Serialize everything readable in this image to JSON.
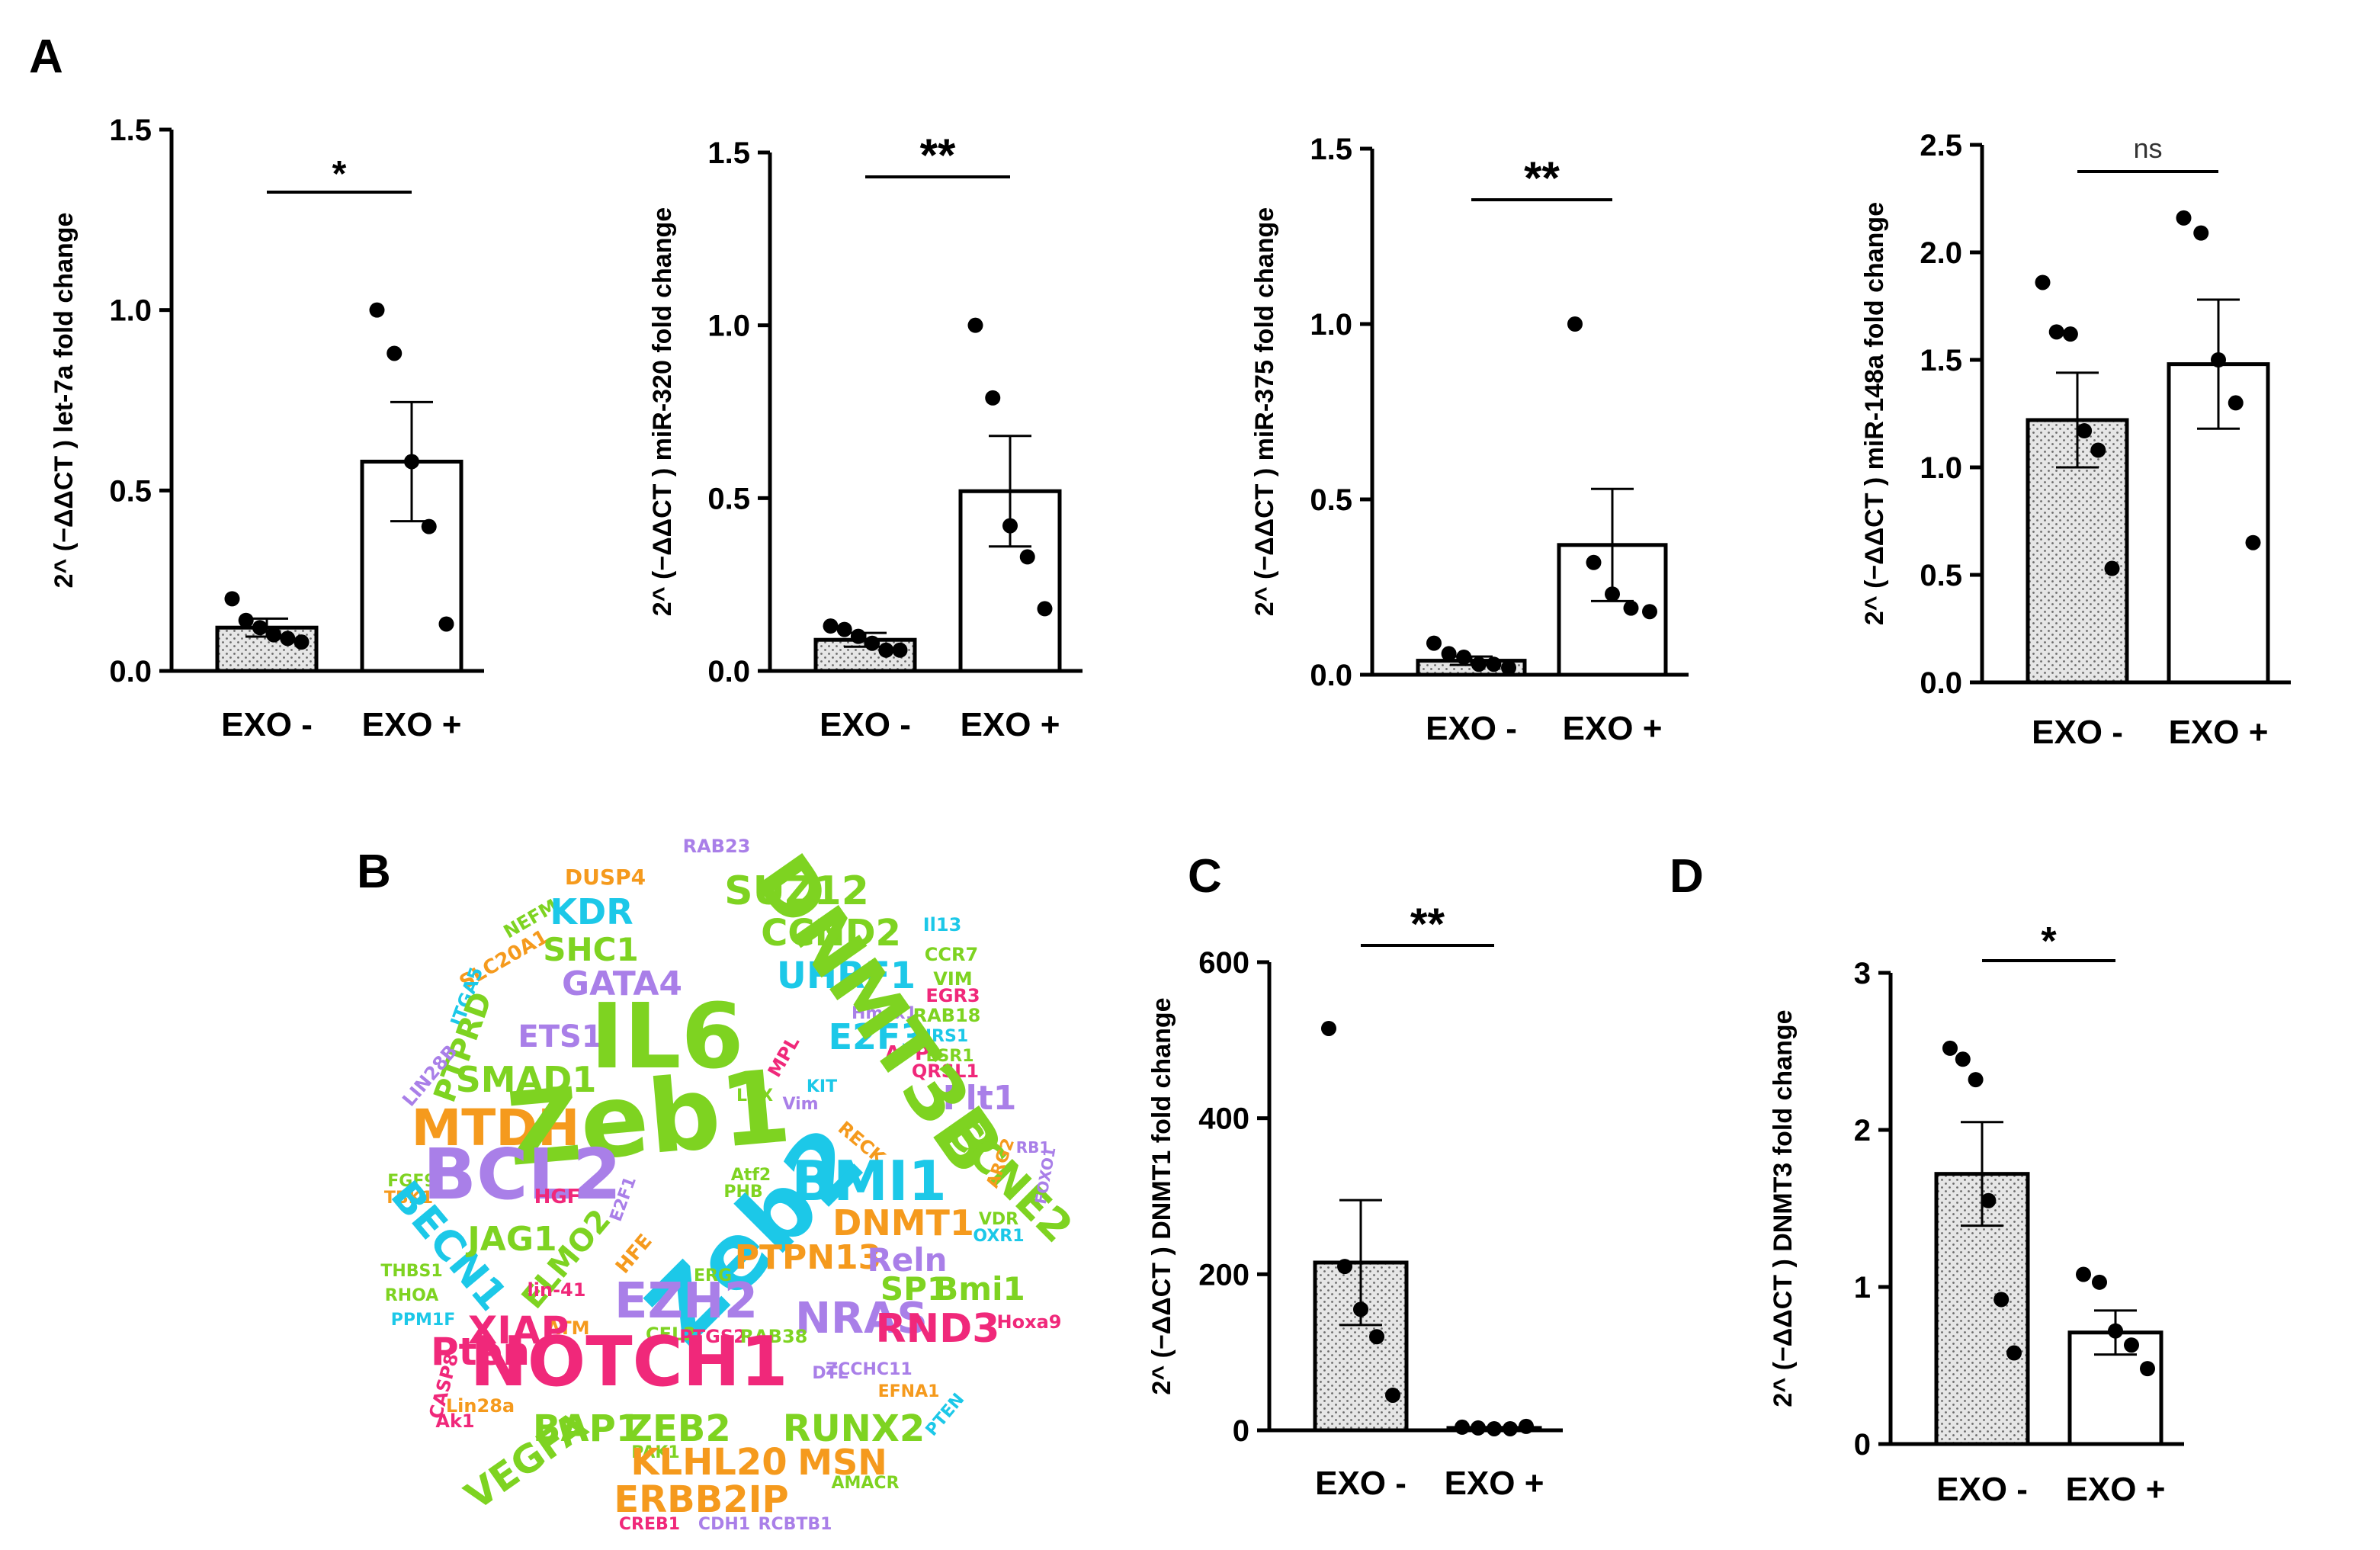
{
  "panel_labels": {
    "a": "A",
    "b": "B",
    "c": "C",
    "d": "D"
  },
  "colors": {
    "bar_stroke": "#000000",
    "bar_fill_stipple": "#d9d9d9",
    "bar_fill_plain": "#ffffff",
    "point": "#000000"
  },
  "chart_data": [
    {
      "id": "let7a",
      "type": "bar",
      "title": "",
      "ylabel": "2^ (−ΔΔCT ) let-7a  fold change",
      "categories": [
        "EXO -",
        "EXO +"
      ],
      "values": [
        0.12,
        0.58
      ],
      "errors": [
        0.025,
        0.165
      ],
      "points": [
        [
          0.2,
          0.14,
          0.12,
          0.1,
          0.09,
          0.08
        ],
        [
          1.0,
          0.88,
          0.58,
          0.4,
          0.13
        ]
      ],
      "ylim": [
        0,
        1.5
      ],
      "yticks": [
        "0.0",
        "0.5",
        "1.0",
        "1.5"
      ],
      "significance": "*"
    },
    {
      "id": "mir320",
      "type": "bar",
      "title": "",
      "ylabel": "2^ (−ΔΔCT ) miR-320 fold change",
      "categories": [
        "EXO -",
        "EXO +"
      ],
      "values": [
        0.09,
        0.52
      ],
      "errors": [
        0.02,
        0.16
      ],
      "points": [
        [
          0.13,
          0.12,
          0.1,
          0.08,
          0.06,
          0.06
        ],
        [
          1.0,
          0.79,
          0.42,
          0.33,
          0.18
        ]
      ],
      "ylim": [
        0,
        1.5
      ],
      "yticks": [
        "0.0",
        "0.5",
        "1.0",
        "1.5"
      ],
      "significance": "**"
    },
    {
      "id": "mir375",
      "type": "bar",
      "title": "",
      "ylabel": "2^ (−ΔΔCT ) miR-375 fold change",
      "categories": [
        "EXO -",
        "EXO +"
      ],
      "values": [
        0.04,
        0.37
      ],
      "errors": [
        0.012,
        0.16
      ],
      "points": [
        [
          0.09,
          0.06,
          0.05,
          0.03,
          0.03,
          0.02
        ],
        [
          1.0,
          0.32,
          0.23,
          0.19,
          0.18
        ]
      ],
      "ylim": [
        0,
        1.5
      ],
      "yticks": [
        "0.0",
        "0.5",
        "1.0",
        "1.5"
      ],
      "significance": "**"
    },
    {
      "id": "mir148a",
      "type": "bar",
      "title": "",
      "ylabel": "2^ (−ΔΔCT ) miR-148a fold change",
      "categories": [
        "EXO -",
        "EXO +"
      ],
      "values": [
        1.22,
        1.48
      ],
      "errors": [
        0.22,
        0.3
      ],
      "points": [
        [
          1.86,
          1.63,
          1.62,
          1.17,
          1.08,
          0.53
        ],
        [
          2.16,
          2.09,
          1.5,
          1.3,
          0.65
        ]
      ],
      "ylim": [
        0,
        2.5
      ],
      "yticks": [
        "0.0",
        "0.5",
        "1.0",
        "1.5",
        "2.0",
        "2.5"
      ],
      "significance": "ns"
    },
    {
      "id": "dnmt1",
      "type": "bar",
      "title": "",
      "ylabel": "2^ (−ΔΔCT ) DNMT1 fold change",
      "categories": [
        "EXO -",
        "EXO +"
      ],
      "values": [
        215,
        3
      ],
      "errors": [
        80,
        1
      ],
      "points": [
        [
          515,
          210,
          155,
          120,
          45
        ],
        [
          4,
          3,
          2,
          2,
          5
        ]
      ],
      "ylim": [
        0,
        600
      ],
      "yticks": [
        "0",
        "200",
        "400",
        "600"
      ],
      "significance": "**"
    },
    {
      "id": "dnmt3",
      "type": "bar",
      "title": "",
      "ylabel": "2^ (−ΔΔCT ) DNMT3 fold change",
      "categories": [
        "EXO -",
        "EXO +"
      ],
      "values": [
        1.72,
        0.71
      ],
      "errors": [
        0.33,
        0.14
      ],
      "points": [
        [
          2.52,
          2.45,
          2.32,
          1.55,
          0.92,
          0.58
        ],
        [
          1.08,
          1.03,
          0.72,
          0.63,
          0.48
        ]
      ],
      "ylim": [
        0,
        3
      ],
      "yticks": [
        "0",
        "1",
        "2",
        "3"
      ],
      "significance": "*"
    }
  ],
  "word_cloud": [
    {
      "text": "RAB23",
      "color": "#a97fe8"
    },
    {
      "text": "DUSP4",
      "color": "#f59a1d"
    },
    {
      "text": "NEFM",
      "color": "#7ed321"
    },
    {
      "text": "SUZ12",
      "color": "#7ed321"
    },
    {
      "text": "KDR",
      "color": "#1cc8e8"
    },
    {
      "text": "CCND2",
      "color": "#7ed321"
    },
    {
      "text": "Il13",
      "color": "#1cc8e8"
    },
    {
      "text": "CCR7",
      "color": "#7ed321"
    },
    {
      "text": "SLC20A1",
      "color": "#f59a1d"
    },
    {
      "text": "SHC1",
      "color": "#7ed321"
    },
    {
      "text": "VIM",
      "color": "#7ed321"
    },
    {
      "text": "EGR3",
      "color": "#f0287a"
    },
    {
      "text": "UHRF1",
      "color": "#1cc8e8"
    },
    {
      "text": "RAB18",
      "color": "#7ed321"
    },
    {
      "text": "ITGA5",
      "color": "#1cc8e8"
    },
    {
      "text": "GATA4",
      "color": "#a97fe8"
    },
    {
      "text": "Hmox1",
      "color": "#a97fe8"
    },
    {
      "text": "IRS1",
      "color": "#1cc8e8"
    },
    {
      "text": "PTPRD",
      "color": "#7ed321"
    },
    {
      "text": "ESR1",
      "color": "#7ed321"
    },
    {
      "text": "QRSL1",
      "color": "#f0287a"
    },
    {
      "text": "APP",
      "color": "#f0287a"
    },
    {
      "text": "E2F3",
      "color": "#1cc8e8"
    },
    {
      "text": "ETS1",
      "color": "#a97fe8"
    },
    {
      "text": "MPL",
      "color": "#f0287a"
    },
    {
      "text": "KIT",
      "color": "#1cc8e8"
    },
    {
      "text": "IL6",
      "color": "#7ed321"
    },
    {
      "text": "LIN28B",
      "color": "#a97fe8"
    },
    {
      "text": "SMAD1",
      "color": "#7ed321"
    },
    {
      "text": "Vim",
      "color": "#a97fe8"
    },
    {
      "text": "LOX",
      "color": "#7ed321"
    },
    {
      "text": "Flt1",
      "color": "#a97fe8"
    },
    {
      "text": "DNMT3B",
      "color": "#7ed321"
    },
    {
      "text": "RECK",
      "color": "#f59a1d"
    },
    {
      "text": "RB1",
      "color": "#a97fe8"
    },
    {
      "text": "MTDH",
      "color": "#f59a1d"
    },
    {
      "text": "Zeb1",
      "color": "#7ed321"
    },
    {
      "text": "CCNE2",
      "color": "#7ed321"
    },
    {
      "text": "FGF9",
      "color": "#7ed321"
    },
    {
      "text": "ARG2",
      "color": "#f59a1d"
    },
    {
      "text": "FOXO1",
      "color": "#a97fe8"
    },
    {
      "text": "TBK1",
      "color": "#f59a1d"
    },
    {
      "text": "BCL2",
      "color": "#a97fe8"
    },
    {
      "text": "HGF",
      "color": "#f0287a"
    },
    {
      "text": "E2F1",
      "color": "#a97fe8"
    },
    {
      "text": "Atf2",
      "color": "#7ed321"
    },
    {
      "text": "BMI1",
      "color": "#1cc8e8"
    },
    {
      "text": "PHB",
      "color": "#7ed321"
    },
    {
      "text": "Zeb2",
      "color": "#1cc8e8"
    },
    {
      "text": "BECN1",
      "color": "#1cc8e8"
    },
    {
      "text": "JAG1",
      "color": "#7ed321"
    },
    {
      "text": "DNMT1",
      "color": "#f59a1d"
    },
    {
      "text": "VDR",
      "color": "#7ed321"
    },
    {
      "text": "OXR1",
      "color": "#1cc8e8"
    },
    {
      "text": "ELMO2",
      "color": "#7ed321"
    },
    {
      "text": "HFE",
      "color": "#f59a1d"
    },
    {
      "text": "PTPN13",
      "color": "#f59a1d"
    },
    {
      "text": "Reln",
      "color": "#a97fe8"
    },
    {
      "text": "THBS1",
      "color": "#7ed321"
    },
    {
      "text": "lin-41",
      "color": "#f0287a"
    },
    {
      "text": "ERG",
      "color": "#7ed321"
    },
    {
      "text": "EZH2",
      "color": "#a97fe8"
    },
    {
      "text": "SP1",
      "color": "#7ed321"
    },
    {
      "text": "Bmi1",
      "color": "#7ed321"
    },
    {
      "text": "RHOA",
      "color": "#7ed321"
    },
    {
      "text": "ATM",
      "color": "#f59a1d"
    },
    {
      "text": "NRAS",
      "color": "#a97fe8"
    },
    {
      "text": "Hoxa9",
      "color": "#f0287a"
    },
    {
      "text": "PPM1F",
      "color": "#1cc8e8"
    },
    {
      "text": "CFL2",
      "color": "#7ed321"
    },
    {
      "text": "PTGS2",
      "color": "#f0287a"
    },
    {
      "text": "RAB38",
      "color": "#7ed321"
    },
    {
      "text": "XIAP",
      "color": "#f0287a"
    },
    {
      "text": "RND3",
      "color": "#f0287a"
    },
    {
      "text": "CASP8",
      "color": "#f0287a"
    },
    {
      "text": "Pten",
      "color": "#f0287a"
    },
    {
      "text": "NOTCH1",
      "color": "#f0287a"
    },
    {
      "text": "DTL",
      "color": "#a97fe8"
    },
    {
      "text": "ZCCHC11",
      "color": "#a97fe8"
    },
    {
      "text": "Lin28a",
      "color": "#f59a1d"
    },
    {
      "text": "EFNA1",
      "color": "#f59a1d"
    },
    {
      "text": "Ak1",
      "color": "#f0287a"
    },
    {
      "text": "BAP1",
      "color": "#7ed321"
    },
    {
      "text": "ZEB2",
      "color": "#7ed321"
    },
    {
      "text": "RUNX2",
      "color": "#7ed321"
    },
    {
      "text": "PTEN",
      "color": "#1cc8e8"
    },
    {
      "text": "VEGFA",
      "color": "#7ed321"
    },
    {
      "text": "PAK1",
      "color": "#7ed321"
    },
    {
      "text": "KLHL20",
      "color": "#f59a1d"
    },
    {
      "text": "MSN",
      "color": "#f59a1d"
    },
    {
      "text": "AMACR",
      "color": "#7ed321"
    },
    {
      "text": "ERBB2IP",
      "color": "#f59a1d"
    },
    {
      "text": "CREB1",
      "color": "#f0287a"
    },
    {
      "text": "CDH1",
      "color": "#a97fe8"
    },
    {
      "text": "RCBTB1",
      "color": "#a97fe8"
    }
  ]
}
